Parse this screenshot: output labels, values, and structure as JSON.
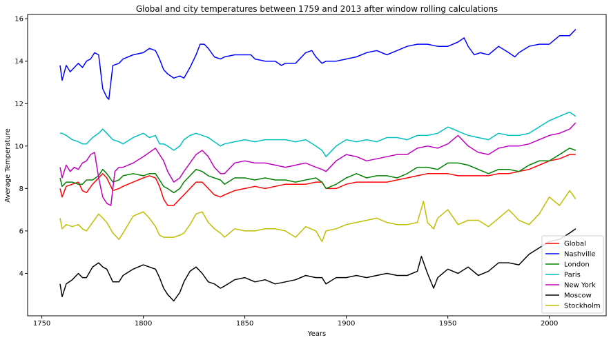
{
  "chart_data": {
    "type": "line",
    "title": "Global and city temperatures between 1759 and 2013 after window rolling calculations",
    "xlabel": "Years",
    "ylabel": "Average Temperature",
    "xlim": [
      1743,
      2028
    ],
    "ylim": [
      2.0,
      16.2
    ],
    "xticks": [
      1750,
      1800,
      1850,
      1900,
      1950,
      2000
    ],
    "yticks": [
      4,
      6,
      8,
      10,
      12,
      14,
      16
    ],
    "grid": false,
    "legend_position": "lower-right",
    "series": [
      {
        "name": "Global",
        "color": "#ff0000",
        "x": [
          1759,
          1760,
          1762,
          1765,
          1768,
          1770,
          1772,
          1775,
          1778,
          1780,
          1782,
          1785,
          1788,
          1790,
          1795,
          1800,
          1803,
          1806,
          1808,
          1810,
          1812,
          1815,
          1818,
          1820,
          1823,
          1826,
          1829,
          1832,
          1835,
          1838,
          1840,
          1845,
          1850,
          1855,
          1860,
          1865,
          1870,
          1875,
          1880,
          1885,
          1888,
          1890,
          1895,
          1900,
          1905,
          1910,
          1915,
          1920,
          1925,
          1930,
          1935,
          1940,
          1945,
          1950,
          1955,
          1960,
          1965,
          1970,
          1975,
          1980,
          1985,
          1990,
          1995,
          2000,
          2005,
          2010,
          2013
        ],
        "y": [
          8.0,
          7.6,
          8.1,
          8.2,
          8.3,
          7.9,
          7.8,
          8.2,
          8.5,
          8.7,
          8.5,
          7.9,
          8.0,
          8.1,
          8.3,
          8.5,
          8.6,
          8.5,
          8.1,
          7.5,
          7.2,
          7.2,
          7.5,
          7.7,
          8.0,
          8.3,
          8.3,
          8.0,
          7.7,
          7.6,
          7.7,
          7.9,
          8.0,
          8.1,
          8.0,
          8.1,
          8.2,
          8.2,
          8.2,
          8.3,
          8.3,
          8.0,
          8.0,
          8.2,
          8.3,
          8.3,
          8.3,
          8.3,
          8.4,
          8.5,
          8.6,
          8.7,
          8.7,
          8.7,
          8.6,
          8.6,
          8.6,
          8.6,
          8.7,
          8.7,
          8.8,
          8.9,
          9.1,
          9.3,
          9.4,
          9.6,
          9.6
        ]
      },
      {
        "name": "Nashville",
        "color": "#0000ff",
        "x": [
          1759,
          1760,
          1762,
          1764,
          1766,
          1768,
          1770,
          1772,
          1774,
          1776,
          1778,
          1780,
          1782,
          1783,
          1785,
          1788,
          1790,
          1795,
          1800,
          1803,
          1806,
          1808,
          1810,
          1812,
          1815,
          1818,
          1820,
          1823,
          1826,
          1828,
          1830,
          1832,
          1835,
          1838,
          1840,
          1845,
          1850,
          1853,
          1855,
          1860,
          1865,
          1868,
          1870,
          1875,
          1880,
          1883,
          1885,
          1888,
          1890,
          1895,
          1900,
          1905,
          1910,
          1915,
          1920,
          1925,
          1930,
          1935,
          1940,
          1945,
          1950,
          1955,
          1958,
          1960,
          1963,
          1966,
          1970,
          1975,
          1980,
          1983,
          1985,
          1990,
          1995,
          2000,
          2005,
          2010,
          2013
        ],
        "y": [
          13.8,
          13.1,
          13.8,
          13.5,
          13.7,
          13.9,
          13.7,
          14.0,
          14.1,
          14.4,
          14.3,
          12.7,
          12.3,
          12.2,
          13.8,
          13.9,
          14.1,
          14.3,
          14.4,
          14.6,
          14.5,
          14.1,
          13.6,
          13.4,
          13.2,
          13.3,
          13.2,
          13.7,
          14.3,
          14.8,
          14.8,
          14.6,
          14.2,
          14.1,
          14.2,
          14.3,
          14.3,
          14.3,
          14.1,
          14.0,
          14.0,
          13.8,
          13.9,
          13.9,
          14.4,
          14.5,
          14.2,
          13.9,
          14.0,
          14.0,
          14.1,
          14.2,
          14.4,
          14.5,
          14.3,
          14.5,
          14.7,
          14.8,
          14.8,
          14.7,
          14.7,
          14.9,
          15.1,
          14.7,
          14.3,
          14.4,
          14.3,
          14.7,
          14.4,
          14.2,
          14.4,
          14.7,
          14.8,
          14.8,
          15.2,
          15.2,
          15.5
        ]
      },
      {
        "name": "London",
        "color": "#008000",
        "x": [
          1759,
          1760,
          1762,
          1765,
          1768,
          1770,
          1772,
          1775,
          1778,
          1780,
          1782,
          1785,
          1788,
          1790,
          1795,
          1800,
          1803,
          1806,
          1808,
          1810,
          1812,
          1815,
          1818,
          1820,
          1823,
          1826,
          1829,
          1832,
          1835,
          1838,
          1840,
          1845,
          1850,
          1855,
          1860,
          1865,
          1870,
          1875,
          1880,
          1885,
          1888,
          1890,
          1895,
          1900,
          1905,
          1910,
          1915,
          1920,
          1925,
          1930,
          1935,
          1940,
          1945,
          1950,
          1955,
          1960,
          1965,
          1970,
          1975,
          1980,
          1985,
          1990,
          1995,
          2000,
          2005,
          2010,
          2013
        ],
        "y": [
          8.5,
          8.1,
          8.3,
          8.3,
          8.2,
          8.2,
          8.4,
          8.4,
          8.6,
          8.9,
          8.7,
          8.3,
          8.4,
          8.6,
          8.7,
          8.6,
          8.7,
          8.7,
          8.4,
          8.1,
          8.0,
          7.8,
          8.0,
          8.3,
          8.6,
          8.9,
          8.8,
          8.6,
          8.5,
          8.4,
          8.2,
          8.5,
          8.5,
          8.4,
          8.5,
          8.4,
          8.4,
          8.3,
          8.4,
          8.5,
          8.3,
          8.0,
          8.2,
          8.5,
          8.7,
          8.5,
          8.6,
          8.6,
          8.5,
          8.7,
          9.0,
          9.0,
          8.9,
          9.2,
          9.2,
          9.1,
          8.9,
          8.7,
          8.9,
          8.9,
          8.8,
          9.1,
          9.3,
          9.3,
          9.6,
          9.9,
          9.8
        ]
      },
      {
        "name": "Paris",
        "color": "#00bfbf",
        "x": [
          1759,
          1760,
          1762,
          1765,
          1768,
          1770,
          1772,
          1775,
          1778,
          1780,
          1782,
          1785,
          1788,
          1790,
          1795,
          1800,
          1803,
          1806,
          1808,
          1810,
          1812,
          1815,
          1818,
          1820,
          1823,
          1826,
          1829,
          1832,
          1835,
          1838,
          1840,
          1845,
          1850,
          1855,
          1860,
          1865,
          1870,
          1875,
          1880,
          1885,
          1888,
          1890,
          1895,
          1900,
          1905,
          1910,
          1915,
          1920,
          1925,
          1930,
          1935,
          1940,
          1945,
          1950,
          1955,
          1960,
          1965,
          1970,
          1975,
          1980,
          1985,
          1990,
          1995,
          2000,
          2005,
          2010,
          2013
        ],
        "y": [
          10.6,
          10.6,
          10.5,
          10.3,
          10.2,
          10.1,
          10.1,
          10.4,
          10.6,
          10.8,
          10.6,
          10.3,
          10.2,
          10.1,
          10.4,
          10.6,
          10.4,
          10.5,
          10.1,
          10.1,
          10.0,
          9.8,
          10.0,
          10.3,
          10.5,
          10.6,
          10.5,
          10.4,
          10.2,
          10.0,
          10.1,
          10.2,
          10.3,
          10.2,
          10.3,
          10.3,
          10.3,
          10.2,
          10.3,
          10.0,
          9.8,
          9.5,
          10.0,
          10.3,
          10.2,
          10.3,
          10.2,
          10.4,
          10.4,
          10.3,
          10.5,
          10.5,
          10.6,
          10.9,
          10.7,
          10.5,
          10.4,
          10.3,
          10.6,
          10.5,
          10.5,
          10.6,
          10.9,
          11.2,
          11.4,
          11.6,
          11.4
        ]
      },
      {
        "name": "New York",
        "color": "#bf00bf",
        "x": [
          1759,
          1760,
          1762,
          1764,
          1766,
          1768,
          1770,
          1772,
          1774,
          1776,
          1778,
          1780,
          1782,
          1784,
          1786,
          1788,
          1790,
          1795,
          1800,
          1803,
          1806,
          1808,
          1810,
          1812,
          1815,
          1818,
          1820,
          1823,
          1826,
          1829,
          1832,
          1835,
          1838,
          1840,
          1845,
          1850,
          1855,
          1860,
          1865,
          1870,
          1875,
          1880,
          1885,
          1888,
          1890,
          1895,
          1900,
          1905,
          1910,
          1915,
          1920,
          1925,
          1930,
          1935,
          1940,
          1945,
          1950,
          1955,
          1960,
          1965,
          1970,
          1975,
          1980,
          1985,
          1990,
          1995,
          2000,
          2005,
          2010,
          2013
        ],
        "y": [
          9.0,
          8.5,
          9.1,
          8.8,
          9.0,
          8.9,
          9.2,
          9.3,
          9.6,
          9.7,
          8.5,
          7.6,
          7.3,
          7.2,
          8.8,
          9.0,
          9.0,
          9.2,
          9.5,
          9.7,
          9.9,
          9.6,
          9.3,
          8.8,
          8.3,
          8.5,
          8.8,
          9.2,
          9.6,
          9.8,
          9.5,
          9.0,
          8.7,
          8.7,
          9.2,
          9.3,
          9.2,
          9.2,
          9.1,
          9.0,
          9.1,
          9.2,
          9.0,
          8.9,
          8.8,
          9.3,
          9.6,
          9.5,
          9.3,
          9.4,
          9.5,
          9.6,
          9.6,
          9.9,
          10.0,
          9.9,
          10.1,
          10.5,
          10.0,
          9.7,
          9.6,
          9.9,
          10.0,
          10.0,
          10.1,
          10.3,
          10.5,
          10.6,
          10.8,
          11.1
        ]
      },
      {
        "name": "Moscow",
        "color": "#000000",
        "x": [
          1759,
          1760,
          1762,
          1765,
          1768,
          1770,
          1772,
          1775,
          1778,
          1780,
          1782,
          1785,
          1788,
          1790,
          1795,
          1800,
          1803,
          1806,
          1808,
          1810,
          1812,
          1815,
          1818,
          1820,
          1823,
          1826,
          1829,
          1832,
          1835,
          1838,
          1840,
          1845,
          1850,
          1855,
          1860,
          1865,
          1870,
          1875,
          1880,
          1885,
          1888,
          1890,
          1895,
          1900,
          1905,
          1910,
          1915,
          1920,
          1925,
          1930,
          1935,
          1937,
          1940,
          1943,
          1945,
          1950,
          1955,
          1960,
          1965,
          1970,
          1975,
          1980,
          1985,
          1990,
          1995,
          2000,
          2005,
          2010,
          2013
        ],
        "y": [
          3.5,
          2.9,
          3.5,
          3.7,
          4.0,
          3.8,
          3.8,
          4.3,
          4.5,
          4.3,
          4.2,
          3.6,
          3.6,
          3.9,
          4.2,
          4.4,
          4.3,
          4.2,
          3.8,
          3.3,
          3.0,
          2.7,
          3.1,
          3.6,
          4.1,
          4.3,
          4.0,
          3.6,
          3.5,
          3.3,
          3.4,
          3.7,
          3.8,
          3.6,
          3.7,
          3.5,
          3.6,
          3.7,
          3.9,
          3.8,
          3.8,
          3.5,
          3.8,
          3.8,
          3.9,
          3.8,
          3.9,
          4.0,
          3.9,
          3.9,
          4.1,
          4.8,
          4.0,
          3.3,
          3.8,
          4.2,
          4.0,
          4.3,
          3.9,
          4.1,
          4.5,
          4.5,
          4.4,
          4.9,
          5.2,
          5.5,
          5.6,
          5.9,
          6.1
        ]
      },
      {
        "name": "Stockholm",
        "color": "#bfbf00",
        "x": [
          1759,
          1760,
          1762,
          1765,
          1768,
          1770,
          1772,
          1775,
          1778,
          1780,
          1782,
          1785,
          1788,
          1790,
          1795,
          1800,
          1803,
          1806,
          1808,
          1810,
          1812,
          1815,
          1818,
          1820,
          1823,
          1826,
          1829,
          1832,
          1835,
          1838,
          1840,
          1845,
          1850,
          1855,
          1860,
          1865,
          1870,
          1875,
          1880,
          1885,
          1888,
          1890,
          1895,
          1900,
          1905,
          1910,
          1915,
          1920,
          1925,
          1930,
          1935,
          1938,
          1940,
          1943,
          1945,
          1950,
          1955,
          1960,
          1965,
          1970,
          1975,
          1980,
          1985,
          1990,
          1995,
          2000,
          2005,
          2010,
          2013
        ],
        "y": [
          6.6,
          6.1,
          6.3,
          6.2,
          6.3,
          6.1,
          6.0,
          6.4,
          6.8,
          6.6,
          6.4,
          5.9,
          5.6,
          5.9,
          6.7,
          6.9,
          6.6,
          6.2,
          5.8,
          5.7,
          5.7,
          5.7,
          5.8,
          5.9,
          6.3,
          6.8,
          6.9,
          6.4,
          6.1,
          5.9,
          5.7,
          6.1,
          6.0,
          6.0,
          6.1,
          6.1,
          6.0,
          5.7,
          6.2,
          6.0,
          5.5,
          6.0,
          6.1,
          6.3,
          6.4,
          6.5,
          6.6,
          6.4,
          6.3,
          6.3,
          6.4,
          7.4,
          6.4,
          6.1,
          6.6,
          7.0,
          6.3,
          6.5,
          6.5,
          6.2,
          6.6,
          7.0,
          6.5,
          6.3,
          6.8,
          7.6,
          7.2,
          7.9,
          7.5
        ]
      }
    ]
  }
}
